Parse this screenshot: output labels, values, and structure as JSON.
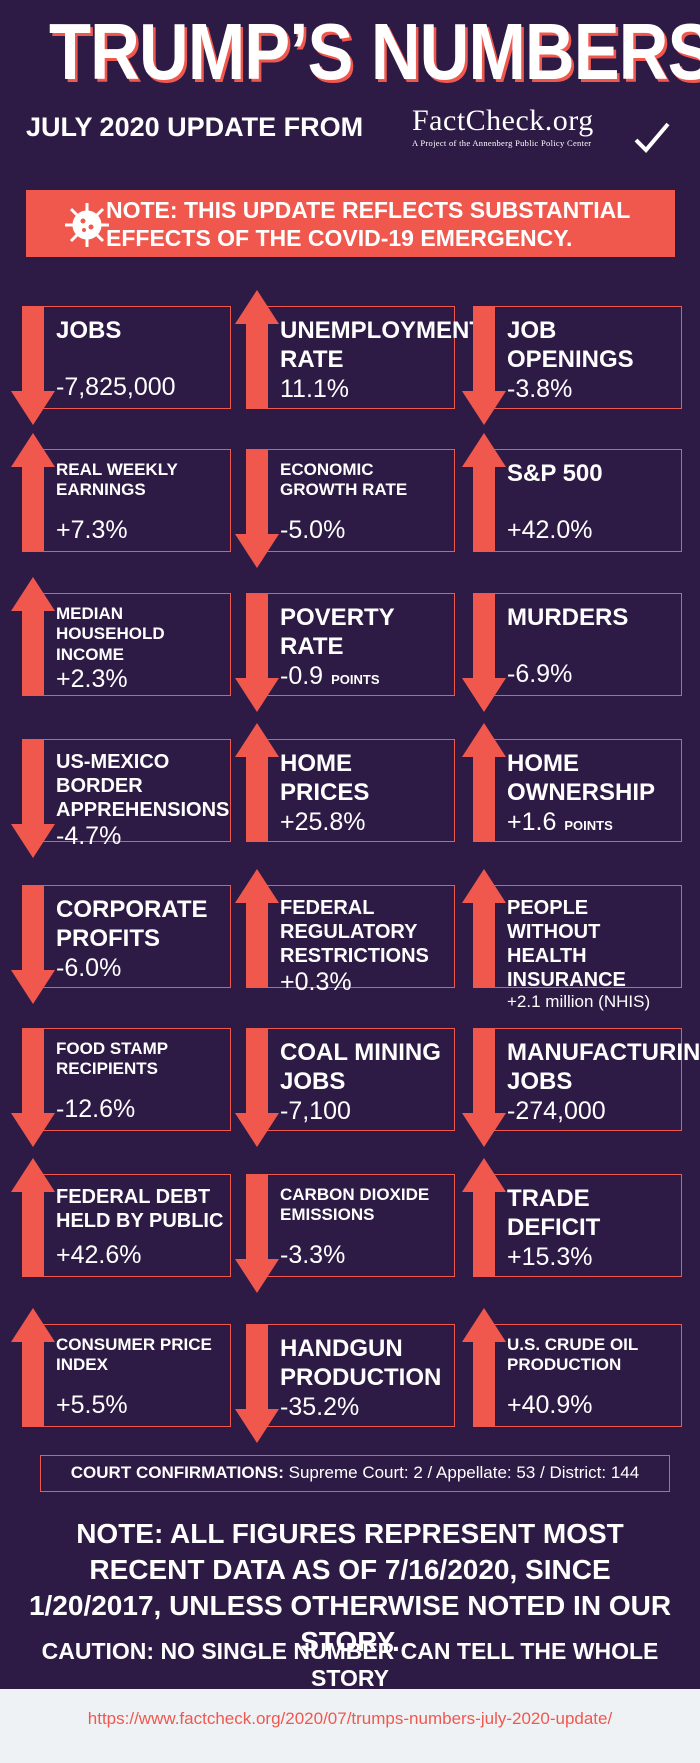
{
  "header": {
    "title": "TRUMP’S NUMBERS",
    "subtitle": "JULY 2020 UPDATE FROM",
    "logo": {
      "name": "FactCheck.org",
      "tagline": "A Project of the Annenberg Public Policy Center"
    }
  },
  "note": "NOTE: THIS UPDATE REFLECTS SUBSTANTIAL EFFECTS OF THE COVID-19 EMERGENCY.",
  "items": [
    {
      "label": "JOBS",
      "value": "-7,825,000",
      "arrow": "down"
    },
    {
      "label": "UNEMPLOYMENT RATE",
      "value": "11.1%",
      "arrow": "up"
    },
    {
      "label": "JOB OPENINGS",
      "value": "-3.8%",
      "arrow": "down"
    },
    {
      "label": "REAL WEEKLY EARNINGS",
      "value": "+7.3%",
      "arrow": "up"
    },
    {
      "label": "ECONOMIC GROWTH RATE",
      "value": "-5.0%",
      "arrow": "down"
    },
    {
      "label": "S&P 500",
      "value": "+42.0%",
      "arrow": "up"
    },
    {
      "label": "MEDIAN HOUSEHOLD INCOME",
      "value": "+2.3%",
      "arrow": "up"
    },
    {
      "label": "POVERTY RATE",
      "value": "-0.9",
      "unit": "POINTS",
      "arrow": "down"
    },
    {
      "label": "MURDERS",
      "value": "-6.9%",
      "arrow": "down"
    },
    {
      "label": "US-MEXICO BORDER APPREHENSIONS",
      "value": "-4.7%",
      "arrow": "down"
    },
    {
      "label": "HOME PRICES",
      "value": "+25.8%",
      "arrow": "up"
    },
    {
      "label": "HOME OWNERSHIP",
      "value": "+1.6",
      "unit": "POINTS",
      "arrow": "up"
    },
    {
      "label": "CORPORATE PROFITS",
      "value": "-6.0%",
      "arrow": "down"
    },
    {
      "label": "FEDERAL REGULATORY RESTRICTIONS",
      "value": "+0.3%",
      "arrow": "up"
    },
    {
      "label": "PEOPLE WITHOUT HEALTH INSURANCE",
      "value": "+2.1 million (NHIS)",
      "arrow": "up"
    },
    {
      "label": "FOOD STAMP RECIPIENTS",
      "value": "-12.6%",
      "arrow": "down"
    },
    {
      "label": "COAL MINING JOBS",
      "value": "-7,100",
      "arrow": "down"
    },
    {
      "label": "MANUFACTURING JOBS",
      "value": "-274,000",
      "arrow": "down"
    },
    {
      "label": "FEDERAL DEBT HELD BY PUBLIC",
      "value": "+42.6%",
      "arrow": "up"
    },
    {
      "label": "CARBON DIOXIDE EMISSIONS",
      "value": "-3.3%",
      "arrow": "down"
    },
    {
      "label": "TRADE DEFICIT",
      "value": "+15.3%",
      "arrow": "up"
    },
    {
      "label": "CONSUMER PRICE INDEX",
      "value": "+5.5%",
      "arrow": "up"
    },
    {
      "label": "HANDGUN PRODUCTION",
      "value": "-35.2%",
      "arrow": "down"
    },
    {
      "label": "U.S. CRUDE OIL PRODUCTION",
      "value": "+40.9%",
      "arrow": "up"
    }
  ],
  "court": {
    "label": "COURT CONFIRMATIONS:",
    "text": "Supreme Court: 2 / Appellate: 53 / District: 144"
  },
  "footer": {
    "note": "NOTE:  ALL FIGURES REPRESENT MOST RECENT DATA AS OF 7/16/2020, SINCE 1/20/2017, UNLESS OTHERWISE NOTED IN OUR STORY.",
    "caution": "CAUTION: NO SINGLE NUMBER CAN TELL THE WHOLE STORY",
    "url": "https://www.factcheck.org/2020/07/trumps-numbers-july-2020-update/"
  }
}
